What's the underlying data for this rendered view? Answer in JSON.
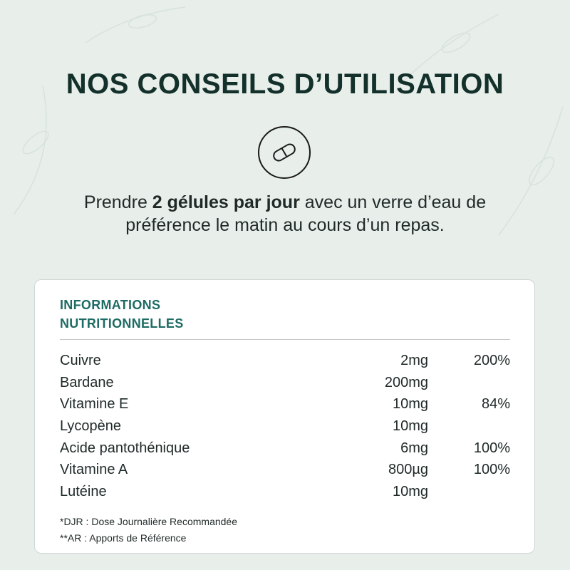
{
  "header": {
    "title": "NOS CONSEILS D’UTILISATION",
    "icon": "capsule-icon"
  },
  "instructions": {
    "before": "Prendre ",
    "bold": "2 gélules par jour",
    "after": " avec un verre d’eau de préférence le matin au cours d’un repas."
  },
  "nutrition": {
    "title_line1": "INFORMATIONS",
    "title_line2": "NUTRITIONNELLES",
    "rows": [
      {
        "name": "Cuivre",
        "qty": "2mg",
        "pct": "200%"
      },
      {
        "name": "Bardane",
        "qty": "200mg",
        "pct": ""
      },
      {
        "name": "Vitamine E",
        "qty": "10mg",
        "pct": "84%"
      },
      {
        "name": "Lycopène",
        "qty": "10mg",
        "pct": ""
      },
      {
        "name": "Acide pantothénique",
        "qty": "6mg",
        "pct": "100%"
      },
      {
        "name": "Vitamine A",
        "qty": "800µg",
        "pct": "100%"
      },
      {
        "name": "Lutéine",
        "qty": "10mg",
        "pct": ""
      }
    ],
    "note1": "*DJR : Dose Journalière Recommandée",
    "note2": "**AR : Apports de Référence"
  },
  "colors": {
    "background": "#e8eeea",
    "title": "#13302b",
    "accent": "#1d6b63"
  }
}
